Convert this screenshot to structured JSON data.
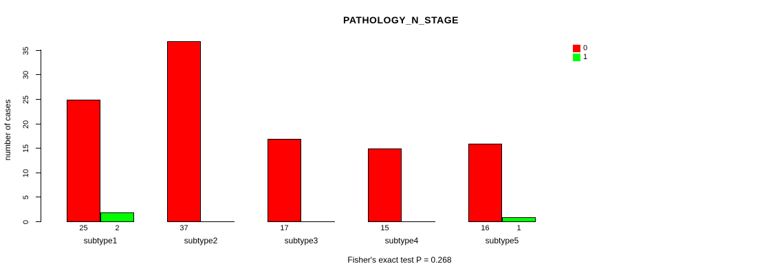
{
  "chart_data": {
    "type": "bar",
    "title": "PATHOLOGY_N_STAGE",
    "xlabel": "",
    "ylabel": "number of cases",
    "categories": [
      "subtype1",
      "subtype2",
      "subtype3",
      "subtype4",
      "subtype5"
    ],
    "series": [
      {
        "name": "0",
        "color": "#FF0000",
        "values": [
          25,
          37,
          17,
          15,
          16
        ]
      },
      {
        "name": "1",
        "color": "#00FF00",
        "values": [
          2,
          0,
          0,
          0,
          1
        ]
      }
    ],
    "yticks": [
      0,
      5,
      10,
      15,
      20,
      25,
      30,
      35
    ],
    "ylim": [
      0,
      37
    ],
    "grid": false,
    "legend_position": "top-right",
    "bar_value_labels_shown": true,
    "footnote": "Fisher's exact test P = 0.268"
  },
  "colors": {
    "background": "#FFFFFF",
    "axis": "#000000",
    "text": "#000000",
    "bar_outline": "#000000"
  }
}
